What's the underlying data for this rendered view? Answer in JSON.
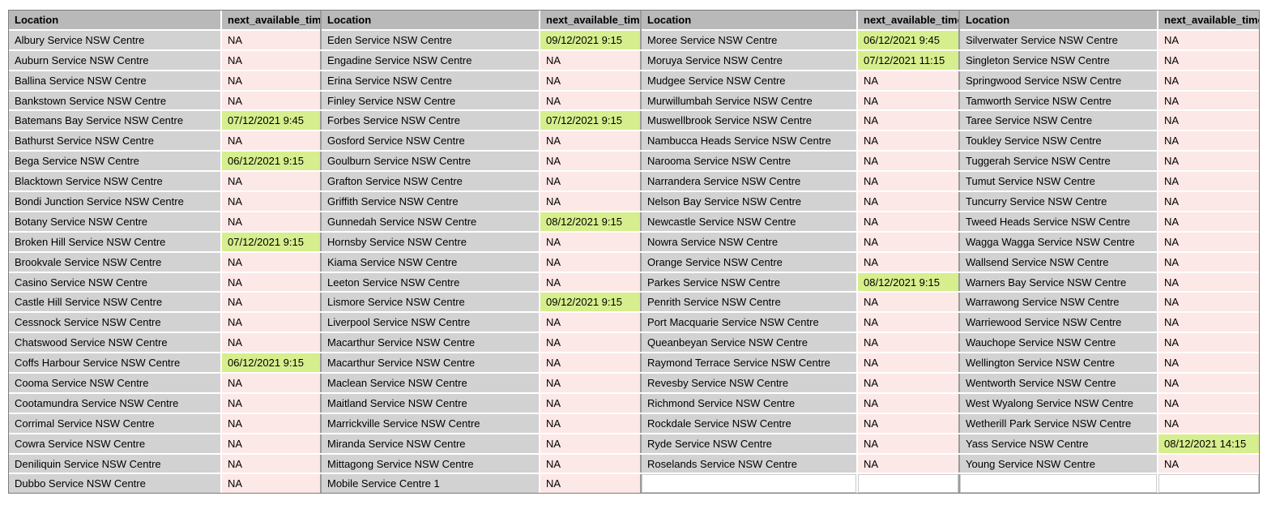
{
  "table": {
    "headers": {
      "location": "Location",
      "time": "next_available_time"
    },
    "na_text": "NA",
    "colors": {
      "header_bg": "#b9b9b9",
      "location_bg": "#d2d2d2",
      "na_bg": "#fce8e6",
      "available_bg": "#d6ee8d",
      "cell_border": "#ffffff",
      "group_separator": "#9b9b9b",
      "outer_border": "#7c7c7c"
    },
    "groups": [
      {
        "rows": [
          [
            "Albury Service NSW Centre",
            "NA"
          ],
          [
            "Auburn Service NSW Centre",
            "NA"
          ],
          [
            "Ballina Service NSW Centre",
            "NA"
          ],
          [
            "Bankstown Service NSW Centre",
            "NA"
          ],
          [
            "Batemans Bay Service NSW Centre",
            "07/12/2021 9:45"
          ],
          [
            "Bathurst Service NSW Centre",
            "NA"
          ],
          [
            "Bega Service NSW Centre",
            "06/12/2021 9:15"
          ],
          [
            "Blacktown Service NSW Centre",
            "NA"
          ],
          [
            "Bondi Junction Service NSW Centre",
            "NA"
          ],
          [
            "Botany Service NSW Centre",
            "NA"
          ],
          [
            "Broken Hill Service NSW Centre",
            "07/12/2021 9:15"
          ],
          [
            "Brookvale Service NSW Centre",
            "NA"
          ],
          [
            "Casino Service NSW Centre",
            "NA"
          ],
          [
            "Castle Hill Service NSW Centre",
            "NA"
          ],
          [
            "Cessnock Service NSW Centre",
            "NA"
          ],
          [
            "Chatswood Service NSW Centre",
            "NA"
          ],
          [
            "Coffs Harbour Service NSW Centre",
            "06/12/2021 9:15"
          ],
          [
            "Cooma Service NSW Centre",
            "NA"
          ],
          [
            "Cootamundra Service NSW Centre",
            "NA"
          ],
          [
            "Corrimal Service NSW Centre",
            "NA"
          ],
          [
            "Cowra Service NSW Centre",
            "NA"
          ],
          [
            "Deniliquin Service NSW Centre",
            "NA"
          ],
          [
            "Dubbo Service NSW Centre",
            "NA"
          ]
        ]
      },
      {
        "rows": [
          [
            "Eden Service NSW Centre",
            "09/12/2021 9:15"
          ],
          [
            "Engadine Service NSW Centre",
            "NA"
          ],
          [
            "Erina Service NSW Centre",
            "NA"
          ],
          [
            "Finley Service NSW Centre",
            "NA"
          ],
          [
            "Forbes Service NSW Centre",
            "07/12/2021 9:15"
          ],
          [
            "Gosford Service NSW Centre",
            "NA"
          ],
          [
            "Goulburn Service NSW Centre",
            "NA"
          ],
          [
            "Grafton Service NSW Centre",
            "NA"
          ],
          [
            "Griffith Service NSW Centre",
            "NA"
          ],
          [
            "Gunnedah Service NSW Centre",
            "08/12/2021 9:15"
          ],
          [
            "Hornsby Service NSW Centre",
            "NA"
          ],
          [
            "Kiama Service NSW Centre",
            "NA"
          ],
          [
            "Leeton Service NSW Centre",
            "NA"
          ],
          [
            "Lismore Service NSW Centre",
            "09/12/2021 9:15"
          ],
          [
            "Liverpool Service NSW Centre",
            "NA"
          ],
          [
            "Macarthur Service NSW Centre",
            "NA"
          ],
          [
            "Macarthur Service NSW Centre",
            "NA"
          ],
          [
            "Maclean Service NSW Centre",
            "NA"
          ],
          [
            "Maitland Service NSW Centre",
            "NA"
          ],
          [
            "Marrickville Service NSW Centre",
            "NA"
          ],
          [
            "Miranda Service NSW Centre",
            "NA"
          ],
          [
            "Mittagong Service NSW Centre",
            "NA"
          ],
          [
            "Mobile Service Centre 1",
            "NA"
          ]
        ]
      },
      {
        "rows": [
          [
            "Moree Service NSW Centre",
            "06/12/2021 9:45"
          ],
          [
            "Moruya Service NSW Centre",
            "07/12/2021 11:15"
          ],
          [
            "Mudgee Service NSW Centre",
            "NA"
          ],
          [
            "Murwillumbah Service NSW Centre",
            "NA"
          ],
          [
            "Muswellbrook Service NSW Centre",
            "NA"
          ],
          [
            "Nambucca Heads Service NSW Centre",
            "NA"
          ],
          [
            "Narooma Service NSW Centre",
            "NA"
          ],
          [
            "Narrandera Service NSW Centre",
            "NA"
          ],
          [
            "Nelson Bay Service NSW Centre",
            "NA"
          ],
          [
            "Newcastle Service NSW Centre",
            "NA"
          ],
          [
            "Nowra Service NSW Centre",
            "NA"
          ],
          [
            "Orange Service NSW Centre",
            "NA"
          ],
          [
            "Parkes Service NSW Centre",
            "08/12/2021 9:15"
          ],
          [
            "Penrith Service NSW Centre",
            "NA"
          ],
          [
            "Port Macquarie Service NSW Centre",
            "NA"
          ],
          [
            "Queanbeyan Service NSW Centre",
            "NA"
          ],
          [
            "Raymond Terrace Service NSW Centre",
            "NA"
          ],
          [
            "Revesby Service NSW Centre",
            "NA"
          ],
          [
            "Richmond Service NSW Centre",
            "NA"
          ],
          [
            "Rockdale Service NSW Centre",
            "NA"
          ],
          [
            "Ryde Service NSW Centre",
            "NA"
          ],
          [
            "Roselands Service NSW Centre",
            "NA"
          ],
          null
        ]
      },
      {
        "rows": [
          [
            "Silverwater Service NSW Centre",
            "NA"
          ],
          [
            "Singleton Service NSW Centre",
            "NA"
          ],
          [
            "Springwood Service NSW Centre",
            "NA"
          ],
          [
            "Tamworth Service NSW Centre",
            "NA"
          ],
          [
            "Taree Service NSW Centre",
            "NA"
          ],
          [
            "Toukley Service NSW Centre",
            "NA"
          ],
          [
            "Tuggerah Service NSW Centre",
            "NA"
          ],
          [
            "Tumut Service NSW Centre",
            "NA"
          ],
          [
            "Tuncurry Service NSW Centre",
            "NA"
          ],
          [
            "Tweed Heads Service NSW Centre",
            "NA"
          ],
          [
            "Wagga Wagga Service NSW Centre",
            "NA"
          ],
          [
            "Wallsend Service NSW Centre",
            "NA"
          ],
          [
            "Warners Bay Service NSW Centre",
            "NA"
          ],
          [
            "Warrawong Service NSW Centre",
            "NA"
          ],
          [
            "Warriewood Service NSW Centre",
            "NA"
          ],
          [
            "Wauchope Service NSW Centre",
            "NA"
          ],
          [
            "Wellington Service NSW Centre",
            "NA"
          ],
          [
            "Wentworth Service NSW Centre",
            "NA"
          ],
          [
            "West Wyalong Service NSW Centre",
            "NA"
          ],
          [
            "Wetherill Park Service NSW Centre",
            "NA"
          ],
          [
            "Yass Service NSW Centre",
            "08/12/2021 14:15"
          ],
          [
            "Young Service NSW Centre",
            "NA"
          ],
          null
        ]
      }
    ]
  }
}
